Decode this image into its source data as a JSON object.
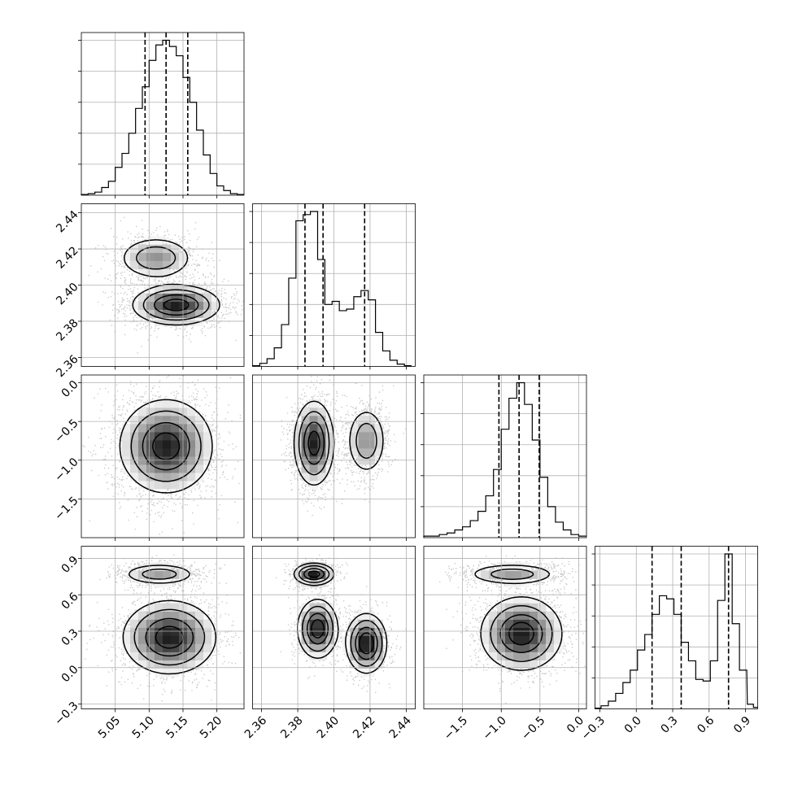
{
  "chart_data": {
    "type": "corner",
    "grid": true,
    "quantile_lines": "dashed",
    "panel_grid": [
      [
        "hist",
        "",
        "",
        ""
      ],
      [
        "2d",
        "hist",
        "",
        ""
      ],
      [
        "2d",
        "2d",
        "hist",
        ""
      ],
      [
        "2d",
        "2d",
        "2d",
        "hist"
      ]
    ],
    "parameters": [
      {
        "index": 0,
        "range": [
          5.0,
          5.24
        ],
        "ticks": [
          5.05,
          5.1,
          5.15,
          5.2
        ],
        "tick_labels": [
          "5.05",
          "5.10",
          "5.15",
          "5.20"
        ],
        "quantiles": [
          5.094,
          5.125,
          5.157
        ],
        "histogram": {
          "bin_centers": [
            5.005,
            5.015,
            5.025,
            5.035,
            5.045,
            5.055,
            5.065,
            5.075,
            5.085,
            5.095,
            5.105,
            5.115,
            5.125,
            5.135,
            5.145,
            5.155,
            5.165,
            5.175,
            5.185,
            5.195,
            5.205,
            5.215,
            5.225,
            5.235
          ],
          "counts": [
            0.005,
            0.01,
            0.02,
            0.05,
            0.09,
            0.18,
            0.27,
            0.4,
            0.56,
            0.7,
            0.87,
            0.97,
            1.0,
            0.96,
            0.9,
            0.76,
            0.6,
            0.42,
            0.26,
            0.14,
            0.06,
            0.03,
            0.01,
            0.005
          ]
        }
      },
      {
        "index": 1,
        "range": [
          2.355,
          2.445
        ],
        "ticks": [
          2.36,
          2.38,
          2.4,
          2.42,
          2.44
        ],
        "tick_labels": [
          "2.36",
          "2.38",
          "2.40",
          "2.42",
          "2.44"
        ],
        "quantiles": [
          2.384,
          2.394,
          2.417
        ],
        "histogram": {
          "bin_centers": [
            2.357,
            2.361,
            2.365,
            2.369,
            2.373,
            2.377,
            2.381,
            2.385,
            2.389,
            2.393,
            2.397,
            2.401,
            2.405,
            2.409,
            2.413,
            2.417,
            2.421,
            2.425,
            2.429,
            2.433,
            2.437,
            2.441
          ],
          "counts": [
            0.005,
            0.02,
            0.05,
            0.12,
            0.27,
            0.57,
            0.94,
            0.98,
            1.0,
            0.69,
            0.4,
            0.42,
            0.36,
            0.37,
            0.45,
            0.49,
            0.43,
            0.22,
            0.1,
            0.04,
            0.015,
            0.005
          ]
        }
      },
      {
        "index": 2,
        "range": [
          -2.0,
          0.1
        ],
        "ticks": [
          -1.5,
          -1.0,
          -0.5,
          0.0
        ],
        "tick_labels": [
          "−1.5",
          "−1.0",
          "−0.5",
          "0.0"
        ],
        "quantiles": [
          -1.03,
          -0.77,
          -0.51
        ],
        "histogram": {
          "bin_centers": [
            -1.95,
            -1.85,
            -1.75,
            -1.65,
            -1.55,
            -1.45,
            -1.35,
            -1.25,
            -1.15,
            -1.05,
            -0.95,
            -0.85,
            -0.75,
            -0.65,
            -0.55,
            -0.45,
            -0.35,
            -0.25,
            -0.15,
            -0.05,
            0.05
          ],
          "counts": [
            0.01,
            0.01,
            0.02,
            0.03,
            0.05,
            0.07,
            0.11,
            0.17,
            0.27,
            0.44,
            0.7,
            0.9,
            1.0,
            0.86,
            0.63,
            0.39,
            0.2,
            0.1,
            0.05,
            0.02,
            0.01
          ]
        }
      },
      {
        "index": 3,
        "range": [
          -0.34,
          1.0
        ],
        "ticks": [
          -0.3,
          0.0,
          0.3,
          0.6,
          0.9
        ],
        "tick_labels": [
          "−0.3",
          "0.0",
          "0.3",
          "0.6",
          "0.9"
        ],
        "quantiles": [
          0.13,
          0.37,
          0.76
        ],
        "histogram": {
          "bin_centers": [
            -0.32,
            -0.26,
            -0.2,
            -0.14,
            -0.08,
            -0.02,
            0.04,
            0.1,
            0.16,
            0.22,
            0.28,
            0.34,
            0.4,
            0.46,
            0.52,
            0.58,
            0.64,
            0.7,
            0.76,
            0.82,
            0.88,
            0.94,
            0.99
          ],
          "counts": [
            0.005,
            0.02,
            0.05,
            0.1,
            0.17,
            0.25,
            0.38,
            0.48,
            0.61,
            0.73,
            0.71,
            0.61,
            0.43,
            0.31,
            0.19,
            0.18,
            0.31,
            0.7,
            1.0,
            0.55,
            0.25,
            0.03,
            0.01
          ]
        }
      }
    ],
    "pairs": [
      {
        "x": 0,
        "y": 1,
        "modes": [
          {
            "mu": [
              5.11,
              2.415
            ],
            "sd": [
              0.028,
              0.006
            ],
            "w": 0.35
          },
          {
            "mu": [
              5.14,
              2.389
            ],
            "sd": [
              0.032,
              0.0055
            ],
            "w": 0.65
          }
        ]
      },
      {
        "x": 0,
        "y": 2,
        "modes": [
          {
            "mu": [
              5.125,
              -0.82
            ],
            "sd": [
              0.034,
              0.3
            ],
            "w": 1.0
          }
        ]
      },
      {
        "x": 1,
        "y": 2,
        "modes": [
          {
            "mu": [
              2.389,
              -0.78
            ],
            "sd": [
              0.0055,
              0.27
            ],
            "w": 0.65
          },
          {
            "mu": [
              2.418,
              -0.75
            ],
            "sd": [
              0.0055,
              0.22
            ],
            "w": 0.35
          }
        ]
      },
      {
        "x": 0,
        "y": 3,
        "modes": [
          {
            "mu": [
              5.115,
              0.77
            ],
            "sd": [
              0.028,
              0.045
            ],
            "w": 0.32
          },
          {
            "mu": [
              5.13,
              0.25
            ],
            "sd": [
              0.034,
              0.15
            ],
            "w": 0.68
          }
        ]
      },
      {
        "x": 1,
        "y": 3,
        "modes": [
          {
            "mu": [
              2.389,
              0.77
            ],
            "sd": [
              0.0055,
              0.045
            ],
            "w": 0.32
          },
          {
            "mu": [
              2.391,
              0.32
            ],
            "sd": [
              0.0055,
              0.12
            ],
            "w": 0.33
          },
          {
            "mu": [
              2.418,
              0.2
            ],
            "sd": [
              0.0055,
              0.12
            ],
            "w": 0.35
          }
        ]
      },
      {
        "x": 2,
        "y": 3,
        "modes": [
          {
            "mu": [
              -0.86,
              0.77
            ],
            "sd": [
              0.3,
              0.045
            ],
            "w": 0.32
          },
          {
            "mu": [
              -0.74,
              0.28
            ],
            "sd": [
              0.26,
              0.15
            ],
            "w": 0.68
          }
        ]
      }
    ]
  }
}
